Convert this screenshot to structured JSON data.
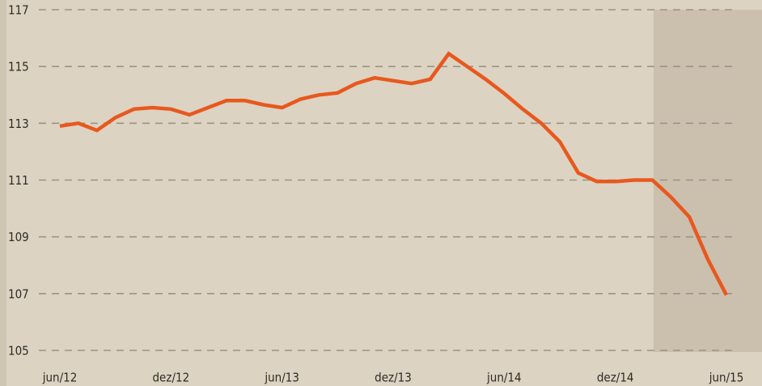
{
  "chart_data": {
    "type": "line",
    "categories": [
      "jun/12",
      null,
      null,
      null,
      null,
      null,
      "dez/12",
      null,
      null,
      null,
      null,
      null,
      "jun/13",
      null,
      null,
      null,
      null,
      null,
      "dez/13",
      null,
      null,
      null,
      null,
      null,
      "jun/14",
      null,
      null,
      null,
      null,
      null,
      "dez/14",
      null,
      null,
      null,
      null,
      null,
      "jun/15"
    ],
    "series": [
      {
        "color": "#e8581e",
        "values": [
          112.9,
          113.0,
          112.75,
          113.2,
          113.5,
          113.55,
          113.5,
          113.3,
          113.55,
          113.8,
          113.8,
          113.65,
          113.55,
          113.85,
          114.0,
          114.07,
          114.4,
          114.6,
          114.5,
          114.4,
          114.55,
          115.45,
          115.0,
          114.55,
          114.05,
          113.5,
          113.0,
          112.35,
          111.25,
          110.95,
          110.95,
          111.0,
          111.0,
          110.4,
          109.7,
          108.2,
          106.95
        ]
      }
    ],
    "ylim": [
      105,
      117
    ],
    "yticks": [
      105,
      107,
      109,
      111,
      113,
      115,
      117
    ],
    "grid": true
  }
}
